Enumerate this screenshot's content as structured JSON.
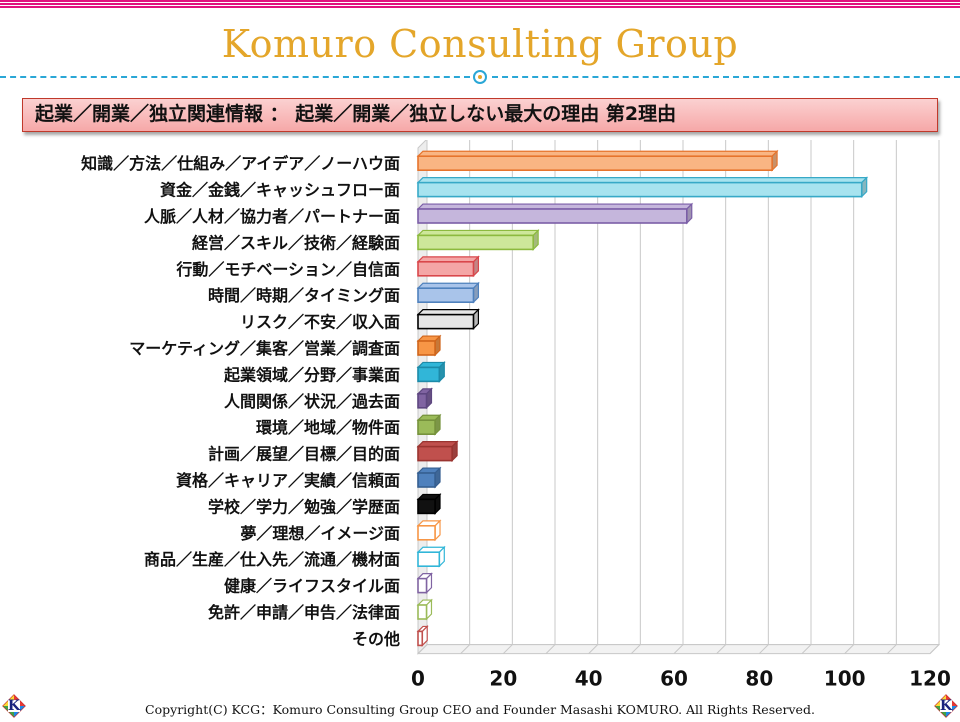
{
  "header": {
    "brand": "Komuro Consulting Group",
    "subtitle": "起業／開業／独立関連情報 ： 起業／開業／独立しない最大の理由 第2理由"
  },
  "footer": {
    "copyright": "Copyright(C) KCG：Komuro Consulting Group CEO and Founder Masashi KOMURO. All Rights Reserved.",
    "logo_letter": "K"
  },
  "chart_data": {
    "type": "bar",
    "orientation": "horizontal",
    "style": "3d",
    "title": "",
    "xlabel": "",
    "ylabel": "",
    "xlim": [
      0,
      120
    ],
    "xticks": [
      0,
      20,
      40,
      60,
      80,
      100,
      120
    ],
    "grid": true,
    "legend": "none",
    "categories": [
      "知識／方法／仕組み／アイデア／ノーハウ面",
      "資金／金銭／キャッシュフロー面",
      "人脈／人材／協力者／パートナー面",
      "経営／スキル／技術／経験面",
      "行動／モチベーション／自信面",
      "時間／時期／タイミング面",
      "リスク／不安／収入面",
      "マーケティング／集客／営業／調査面",
      "起業領域／分野／事業面",
      "人間関係／状況／過去面",
      "環境／地域／物件面",
      "計画／展望／目標／目的面",
      "資格／キャリア／実績／信頼面",
      "学校／学力／勉強／学歴面",
      "夢／理想／イメージ面",
      "商品／生産／仕入先／流通／機材面",
      "健康／ライフスタイル面",
      "免許／申請／申告／法律面",
      "その他"
    ],
    "values": [
      83,
      104,
      63,
      27,
      13,
      13,
      13,
      4,
      5,
      2,
      4,
      8,
      4,
      4,
      4,
      5,
      2,
      2,
      1
    ],
    "colors": [
      {
        "fill": "#f9b583",
        "edge": "#e6742d"
      },
      {
        "fill": "#a7e3ef",
        "edge": "#37a9c7"
      },
      {
        "fill": "#c5b6dc",
        "edge": "#7b5ea7"
      },
      {
        "fill": "#cde79a",
        "edge": "#8cba3e"
      },
      {
        "fill": "#f4a6a6",
        "edge": "#d9474b"
      },
      {
        "fill": "#a9c4ea",
        "edge": "#4f81bd"
      },
      {
        "fill": "#e6e6e6",
        "edge": "#000000"
      },
      {
        "fill": "#f79646",
        "edge": "#d0651b"
      },
      {
        "fill": "#31b6d8",
        "edge": "#1c8aa8"
      },
      {
        "fill": "#8064a2",
        "edge": "#5d4680"
      },
      {
        "fill": "#9bbb59",
        "edge": "#76923c"
      },
      {
        "fill": "#c0504d",
        "edge": "#9a3430"
      },
      {
        "fill": "#4f81bd",
        "edge": "#365f91"
      },
      {
        "fill": "#111111",
        "edge": "#000000"
      },
      {
        "fill": "#ffffff",
        "edge": "#f79646"
      },
      {
        "fill": "#ffffff",
        "edge": "#31b6d8"
      },
      {
        "fill": "#ffffff",
        "edge": "#8064a2"
      },
      {
        "fill": "#ffffff",
        "edge": "#9bbb59"
      },
      {
        "fill": "#ffffff",
        "edge": "#c0504d"
      }
    ]
  },
  "theme": {
    "brand_color": "#e4a62a",
    "accent_line": "#2aa7d6",
    "stripe_color": "#e0117f",
    "subtitle_fill": "#f6a8a8",
    "subtitle_border": "#c0392b"
  }
}
